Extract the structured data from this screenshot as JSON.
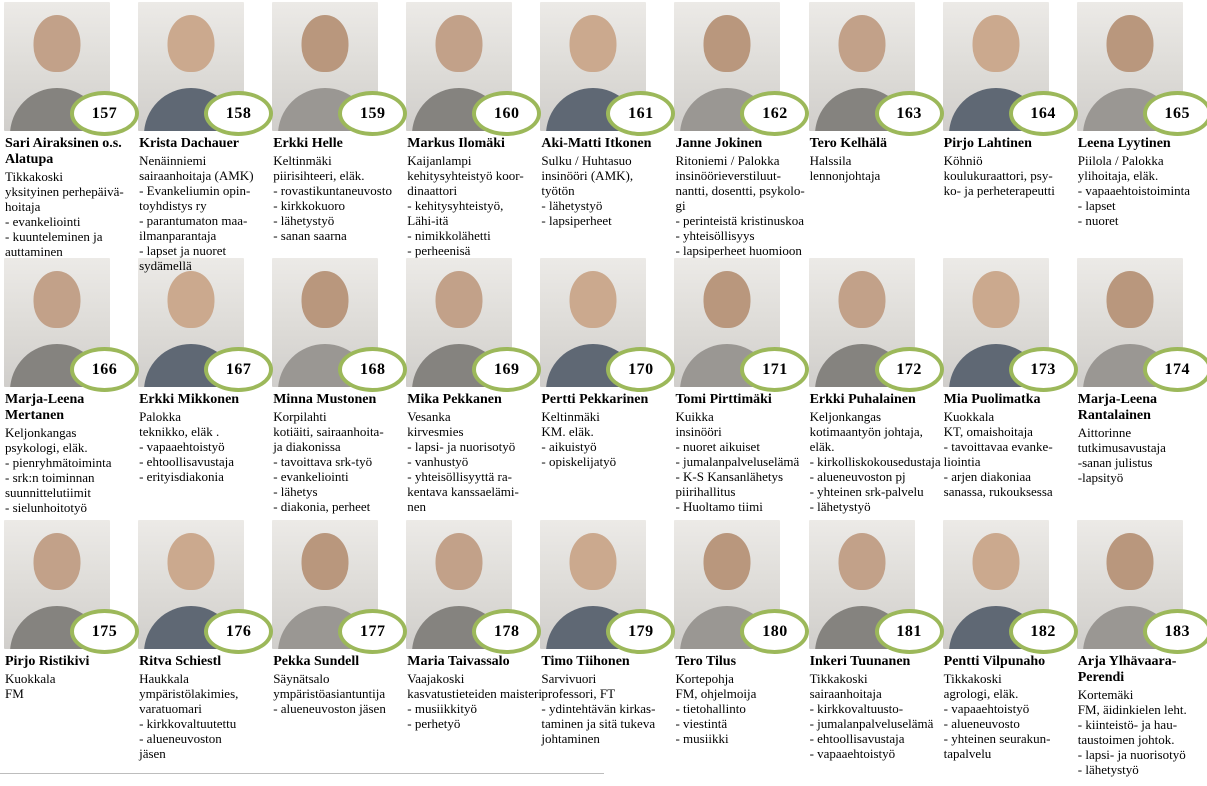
{
  "page": {
    "badge_border_color": "#9cb85a",
    "badge_fill_color": "#ffffff",
    "text_color": "#000000"
  },
  "people": [
    {
      "number": "157",
      "name_lines": [
        "Sari Airaksinen o.s.",
        "Alatupa"
      ],
      "detail_lines": [
        "Tikkakoski",
        "yksityinen perhepäivä-",
        "hoitaja",
        "- evankeliointi",
        "- kuunteleminen ja",
        "auttaminen"
      ]
    },
    {
      "number": "158",
      "name_lines": [
        "Krista Dachauer"
      ],
      "detail_lines": [
        "Nenäinniemi",
        "sairaanhoitaja (AMK)",
        "- Evankeliumin opin-",
        "toyhdistys ry",
        "- parantumaton maa-",
        "ilmanparantaja",
        "- lapset ja nuoret",
        "sydämellä"
      ]
    },
    {
      "number": "159",
      "name_lines": [
        "Erkki Helle"
      ],
      "detail_lines": [
        "Keltinmäki",
        "piirisihteeri, eläk.",
        "- rovastikuntaneuvosto",
        "- kirkkokuoro",
        "- lähetystyö",
        "- sanan saarna"
      ]
    },
    {
      "number": "160",
      "name_lines": [
        "Markus Ilomäki"
      ],
      "detail_lines": [
        "Kaijanlampi",
        "kehitysyhteistyö koor-",
        "dinaattori",
        "- kehitysyhteistyö,",
        "Lähi-itä",
        "- nimikkolähetti",
        "- perheenisä"
      ]
    },
    {
      "number": "161",
      "name_lines": [
        "Aki-Matti Itkonen"
      ],
      "detail_lines": [
        "Sulku / Huhtasuo",
        "insinööri (AMK),",
        "työtön",
        "- lähetystyö",
        "- lapsiperheet"
      ]
    },
    {
      "number": "162",
      "name_lines": [
        "Janne Jokinen"
      ],
      "detail_lines": [
        "Ritoniemi / Palokka",
        "insinöörieverstiluut-",
        "nantti, dosentti, psykolo-",
        "gi",
        "- perinteistä kristinuskoa",
        "- yhteisöllisyys",
        "- lapsiperheet huomioon"
      ]
    },
    {
      "number": "163",
      "name_lines": [
        "Tero Kelhälä"
      ],
      "detail_lines": [
        "Halssila",
        "lennonjohtaja"
      ]
    },
    {
      "number": "164",
      "name_lines": [
        "Pirjo Lahtinen"
      ],
      "detail_lines": [
        "Köhniö",
        "koulukuraattori, psy-",
        "ko- ja perheterapeutti"
      ]
    },
    {
      "number": "165",
      "name_lines": [
        "Leena Lyytinen"
      ],
      "detail_lines": [
        "Piilola / Palokka",
        "ylihoitaja, eläk.",
        "- vapaaehtoistoiminta",
        "- lapset",
        "- nuoret"
      ]
    },
    {
      "number": "166",
      "name_lines": [
        "Marja-Leena",
        "Mertanen"
      ],
      "detail_lines": [
        "Keljonkangas",
        "psykologi, eläk.",
        "- pienryhmätoiminta",
        "- srk:n toiminnan",
        "suunnittelutiimit",
        "- sielunhoitotyö"
      ]
    },
    {
      "number": "167",
      "name_lines": [
        "Erkki Mikkonen"
      ],
      "detail_lines": [
        "Palokka",
        "teknikko, eläk .",
        "- vapaaehtoistyö",
        "- ehtoollisavustaja",
        "- erityisdiakonia"
      ]
    },
    {
      "number": "168",
      "name_lines": [
        "Minna Mustonen"
      ],
      "detail_lines": [
        "Korpilahti",
        "kotiäiti, sairaanhoita-",
        "ja diakonissa",
        "- tavoittava srk-työ",
        "- evankeliointi",
        "- lähetys",
        "- diakonia, perheet"
      ]
    },
    {
      "number": "169",
      "name_lines": [
        "Mika Pekkanen"
      ],
      "detail_lines": [
        "Vesanka",
        "kirvesmies",
        "- lapsi- ja nuorisotyö",
        "- vanhustyö",
        "- yhteisöllisyyttä ra-",
        "kentava kanssaelämi-",
        "nen"
      ]
    },
    {
      "number": "170",
      "name_lines": [
        "Pertti Pekkarinen"
      ],
      "detail_lines": [
        "Keltinmäki",
        "KM. eläk.",
        "- aikuistyö",
        "- opiskelijatyö"
      ]
    },
    {
      "number": "171",
      "name_lines": [
        "Tomi Pirttimäki"
      ],
      "detail_lines": [
        "Kuikka",
        "insinööri",
        "- nuoret aikuiset",
        "- jumalanpalveluselämä",
        "- K-S Kansanlähetys",
        "piirihallitus",
        "- Huoltamo tiimi"
      ]
    },
    {
      "number": "172",
      "name_lines": [
        "Erkki Puhalainen"
      ],
      "detail_lines": [
        "Keljonkangas",
        "kotimaantyön johtaja,",
        "eläk.",
        "- kirkolliskokousedustaja",
        "- alueneuvoston pj",
        "- yhteinen srk-palvelu",
        "- lähetystyö"
      ]
    },
    {
      "number": "173",
      "name_lines": [
        "Mia Puolimatka"
      ],
      "detail_lines": [
        "Kuokkala",
        "KT, omaishoitaja",
        "- tavoittavaa evanke-",
        "liointia",
        "- arjen diakoniaa",
        "sanassa, rukouksessa"
      ]
    },
    {
      "number": "174",
      "name_lines": [
        "Marja-Leena",
        "Rantalainen"
      ],
      "detail_lines": [
        "Aittorinne",
        "tutkimusavustaja",
        "-sanan julistus",
        "-lapsityö"
      ]
    },
    {
      "number": "175",
      "name_lines": [
        "Pirjo Ristikivi"
      ],
      "detail_lines": [
        "Kuokkala",
        "FM"
      ]
    },
    {
      "number": "176",
      "name_lines": [
        "Ritva Schiestl"
      ],
      "detail_lines": [
        "Haukkala",
        "ympäristölakimies,",
        "varatuomari",
        "- kirkkovaltuutettu",
        "- alueneuvoston",
        "jäsen"
      ]
    },
    {
      "number": "177",
      "name_lines": [
        "Pekka Sundell"
      ],
      "detail_lines": [
        "Säynätsalo",
        "ympäristöasiantuntija",
        "- alueneuvoston jäsen"
      ]
    },
    {
      "number": "178",
      "name_lines": [
        "Maria Taivassalo"
      ],
      "detail_lines": [
        "Vaajakoski",
        "kasvatustieteiden maisteri",
        "- musiikkityö",
        "- perhetyö"
      ]
    },
    {
      "number": "179",
      "name_lines": [
        "Timo Tiihonen"
      ],
      "detail_lines": [
        "Sarvivuori",
        "professori, FT",
        "- ydintehtävän kirkas-",
        "taminen ja sitä tukeva",
        "johtaminen"
      ]
    },
    {
      "number": "180",
      "name_lines": [
        "Tero Tilus"
      ],
      "detail_lines": [
        "Kortepohja",
        "FM, ohjelmoija",
        "- tietohallinto",
        "- viestintä",
        "- musiikki"
      ]
    },
    {
      "number": "181",
      "name_lines": [
        "Inkeri Tuunanen"
      ],
      "detail_lines": [
        "Tikkakoski",
        "sairaanhoitaja",
        "- kirkkovaltuusto-",
        "- jumalanpalveluselämä",
        "- ehtoollisavustaja",
        "- vapaaehtoistyö"
      ]
    },
    {
      "number": "182",
      "name_lines": [
        "Pentti Vilpunaho"
      ],
      "detail_lines": [
        "Tikkakoski",
        "agrologi, eläk.",
        "- vapaaehtoistyö",
        "- alueneuvosto",
        "- yhteinen seurakun-",
        "tapalvelu"
      ]
    },
    {
      "number": "183",
      "name_lines": [
        "Arja Ylhävaara-",
        "Perendi"
      ],
      "detail_lines": [
        "Kortemäki",
        "FM, äidinkielen leht.",
        "- kiinteistö- ja hau-",
        "taustoimen johtok.",
        "- lapsi- ja nuorisotyö",
        "- lähetystyö"
      ]
    }
  ]
}
